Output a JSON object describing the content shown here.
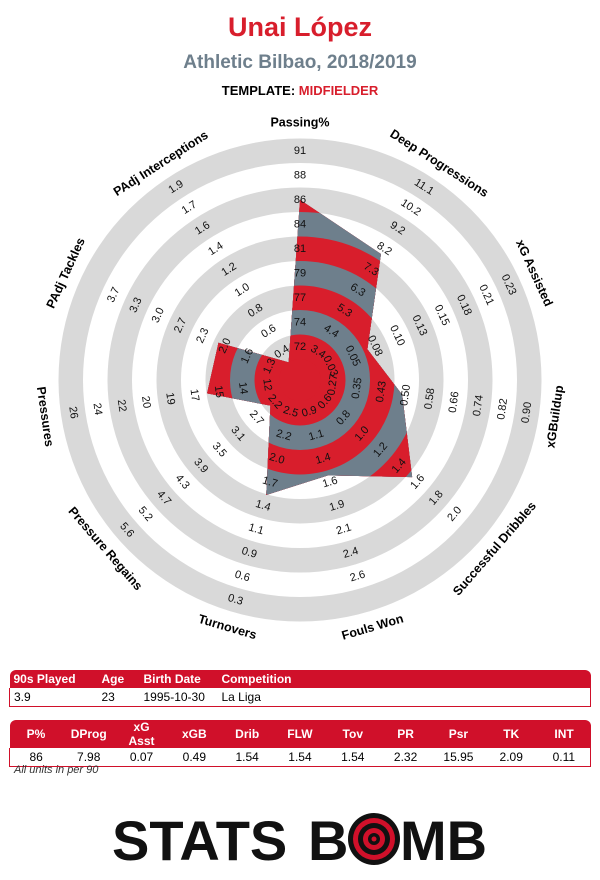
{
  "header": {
    "player": "Unai López",
    "team_season": "Athletic Bilbao, 2018/2019",
    "template_label": "TEMPLATE:",
    "template_value": "MIDFIELDER"
  },
  "colors": {
    "accent": "#d81e2c",
    "slate": "#6e7f8c",
    "ring": "#d9d9d9",
    "table_red": "#d0102a"
  },
  "chart_data": {
    "type": "radar",
    "metrics": [
      {
        "name": "Passing%",
        "ticks": [
          "72",
          "74",
          "77",
          "79",
          "81",
          "84",
          "86",
          "88",
          "91"
        ],
        "value": 86
      },
      {
        "name": "Deep Progressions",
        "ticks": [
          "3.4",
          "4.4",
          "5.3",
          "6.3",
          "7.3",
          "8.2",
          "9.2",
          "10.2",
          "11.1"
        ],
        "value": 7.98
      },
      {
        "name": "xG Assisted",
        "ticks": [
          "0.03",
          "0.05",
          "0.08",
          "0.10",
          "0.13",
          "0.15",
          "0.18",
          "0.21",
          "0.23"
        ],
        "value": 0.07
      },
      {
        "name": "xGBuildup",
        "ticks": [
          "0.27",
          "0.35",
          "0.43",
          "0.50",
          "0.58",
          "0.66",
          "0.74",
          "0.82",
          "0.90"
        ],
        "value": 0.49
      },
      {
        "name": "Successful Dribbles",
        "ticks": [
          "0.6",
          "0.8",
          "1.0",
          "1.2",
          "1.4",
          "1.6",
          "1.8",
          "2.0"
        ],
        "value": 1.54
      },
      {
        "name": "Fouls Won",
        "ticks": [
          "0.9",
          "1.1",
          "1.4",
          "1.6",
          "1.9",
          "2.1",
          "2.4",
          "2.6"
        ],
        "value": 1.54
      },
      {
        "name": "Turnovers",
        "ticks": [
          "2.5",
          "2.2",
          "2.0",
          "1.7",
          "1.4",
          "1.1",
          "0.9",
          "0.6",
          "0.3"
        ],
        "value": 1.54
      },
      {
        "name": "Pressure Regains",
        "ticks": [
          "2.2",
          "2.7",
          "3.1",
          "3.5",
          "3.9",
          "4.3",
          "4.7",
          "5.2",
          "5.6"
        ],
        "value": 2.32
      },
      {
        "name": "Pressures",
        "ticks": [
          "12",
          "14",
          "15",
          "17",
          "19",
          "20",
          "22",
          "24",
          "26"
        ],
        "value": 15.95
      },
      {
        "name": "PAdj Tackles",
        "ticks": [
          "1.3",
          "1.6",
          "2.0",
          "2.3",
          "2.7",
          "3.0",
          "3.3",
          "3.7"
        ],
        "value": 2.09
      },
      {
        "name": "PAdj Interceptions",
        "ticks": [
          "0.4",
          "0.6",
          "0.8",
          "1.0",
          "1.2",
          "1.4",
          "1.6",
          "1.7",
          "1.9"
        ],
        "value": 0.11
      }
    ]
  },
  "info_table": {
    "headers": [
      "90s Played",
      "Age",
      "Birth Date",
      "Competition"
    ],
    "row": [
      "3.9",
      "23",
      "1995-10-30",
      "La Liga"
    ]
  },
  "stats_table": {
    "headers": [
      "P%",
      "DProg",
      "xG Asst",
      "xGB",
      "Drib",
      "FLW",
      "Tov",
      "PR",
      "Psr",
      "TK",
      "INT"
    ],
    "row": [
      "86",
      "7.98",
      "0.07",
      "0.49",
      "1.54",
      "1.54",
      "1.54",
      "2.32",
      "15.95",
      "2.09",
      "0.11"
    ]
  },
  "footnote": "All units in per 90",
  "logo": {
    "text_left": "STATS",
    "text_right": "B",
    "text_right2": "MB"
  }
}
